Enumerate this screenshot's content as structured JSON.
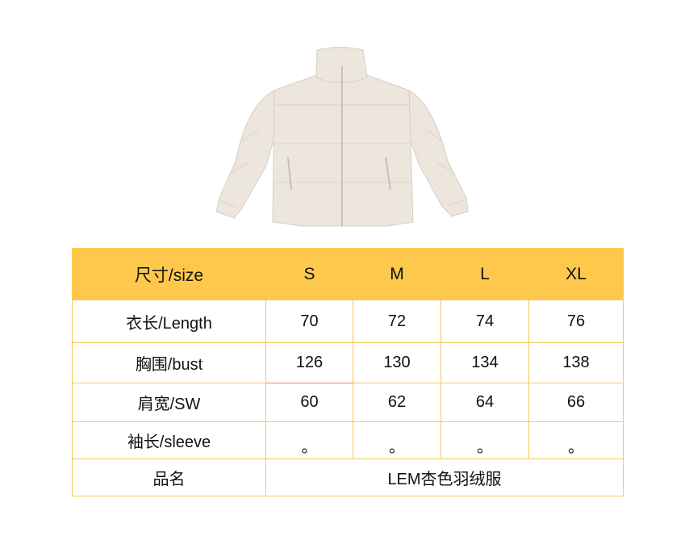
{
  "product_image": {
    "alt_icon": "puffer-jacket-image",
    "color": "#ece6dc"
  },
  "size_table": {
    "header": {
      "label": "尺寸/size",
      "sizes": [
        "S",
        "M",
        "L",
        "XL"
      ]
    },
    "rows": [
      {
        "label": "衣长/Length",
        "values": [
          "70",
          "72",
          "74",
          "76"
        ]
      },
      {
        "label": "胸围/bust",
        "values": [
          "126",
          "130",
          "134",
          "138"
        ]
      },
      {
        "label": "肩宽/SW",
        "values": [
          "60",
          "62",
          "64",
          "66"
        ]
      },
      {
        "label": "袖长/sleeve",
        "values": [
          "。",
          "。",
          "。",
          "。"
        ]
      }
    ],
    "product_name": {
      "label": "品名",
      "value": "LEM杏色羽绒服"
    },
    "header_color": "#fdc84c",
    "border_color": "#f6c75a"
  }
}
